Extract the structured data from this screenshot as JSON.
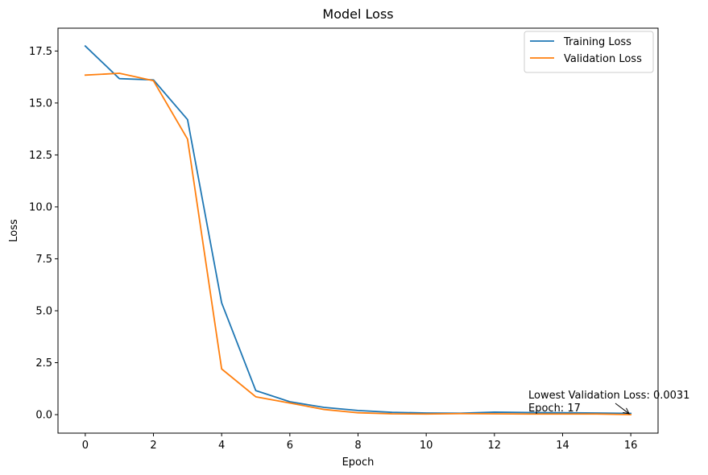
{
  "chart_data": {
    "type": "line",
    "title": "Model Loss",
    "xlabel": "Epoch",
    "ylabel": "Loss",
    "xlim": [
      -0.8,
      16.8
    ],
    "ylim": [
      -0.89,
      18.6
    ],
    "xticks": [
      0,
      2,
      4,
      6,
      8,
      10,
      12,
      14,
      16
    ],
    "yticks": [
      0.0,
      2.5,
      5.0,
      7.5,
      10.0,
      12.5,
      15.0,
      17.5
    ],
    "ytick_labels": [
      "0.0",
      "2.5",
      "5.0",
      "7.5",
      "10.0",
      "12.5",
      "15.0",
      "17.5"
    ],
    "grid": false,
    "legend": "top-right",
    "x": [
      0,
      1,
      2,
      3,
      4,
      5,
      6,
      7,
      8,
      9,
      10,
      11,
      12,
      13,
      14,
      15,
      16
    ],
    "series": [
      {
        "name": "Training Loss",
        "color": "#1f77b4",
        "values": [
          17.74,
          16.17,
          16.11,
          14.2,
          5.38,
          1.16,
          0.62,
          0.35,
          0.2,
          0.11,
          0.08,
          0.07,
          0.12,
          0.1,
          0.09,
          0.08,
          0.06
        ]
      },
      {
        "name": "Validation Loss",
        "color": "#ff7f0e",
        "values": [
          16.34,
          16.43,
          16.07,
          13.26,
          2.2,
          0.86,
          0.56,
          0.25,
          0.09,
          0.04,
          0.03,
          0.05,
          0.04,
          0.03,
          0.03,
          0.03,
          0.0031
        ]
      }
    ],
    "annotation": {
      "line1": "Lowest Validation Loss: 0.0031",
      "line2": "Epoch: 17",
      "target_x": 16,
      "target_y": 0.0031
    }
  }
}
